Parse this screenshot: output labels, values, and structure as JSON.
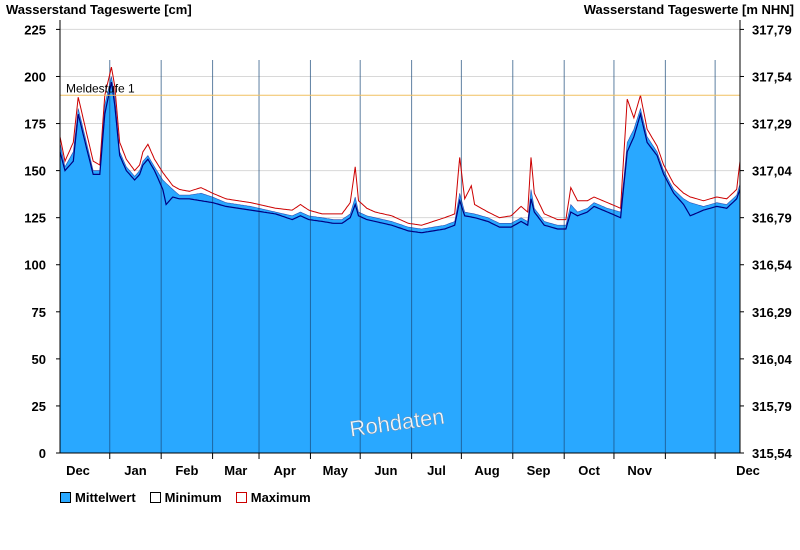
{
  "chart_data": {
    "type": "area",
    "title_left": "Wasserstand Tageswerte [cm]",
    "title_right": "Wasserstand Tageswerte [m NHN]",
    "ylim": [
      0,
      230
    ],
    "yticks": [
      0,
      25,
      50,
      75,
      100,
      125,
      150,
      175,
      200,
      225
    ],
    "yticks_right": [
      "315,54",
      "315,79",
      "316,04",
      "316,29",
      "316,54",
      "316,79",
      "317,04",
      "317,29",
      "317,54",
      "317,79"
    ],
    "months": [
      "Dec",
      "Jan",
      "Feb",
      "Mar",
      "Apr",
      "May",
      "Jun",
      "Jul",
      "Aug",
      "Sep",
      "Oct",
      "Nov",
      "Dec"
    ],
    "threshold": {
      "label": "Meldestufe 1",
      "value": 190,
      "color": "#f0c060"
    },
    "watermark": "Rohdaten",
    "grid": true,
    "legend_position": "bottom-left",
    "colors": {
      "mittel": "#29a8ff",
      "minimum": "#000080",
      "maximum": "#cc0000",
      "month_line": "#1a4a7a"
    },
    "series": [
      {
        "name": "Mittelwert",
        "keypoints": [
          [
            0,
            165
          ],
          [
            3,
            152
          ],
          [
            8,
            160
          ],
          [
            11,
            183
          ],
          [
            16,
            165
          ],
          [
            20,
            150
          ],
          [
            24,
            150
          ],
          [
            27,
            185
          ],
          [
            31,
            200
          ],
          [
            33,
            190
          ],
          [
            36,
            160
          ],
          [
            40,
            152
          ],
          [
            45,
            147
          ],
          [
            48,
            150
          ],
          [
            50,
            155
          ],
          [
            53,
            158
          ],
          [
            57,
            152
          ],
          [
            62,
            145
          ],
          [
            68,
            140
          ],
          [
            72,
            137
          ],
          [
            78,
            137
          ],
          [
            85,
            138
          ],
          [
            92,
            136
          ],
          [
            100,
            133
          ],
          [
            115,
            131
          ],
          [
            130,
            128
          ],
          [
            140,
            126
          ],
          [
            145,
            128
          ],
          [
            150,
            126
          ],
          [
            158,
            125
          ],
          [
            165,
            124
          ],
          [
            170,
            124
          ],
          [
            175,
            127
          ],
          [
            178,
            136
          ],
          [
            180,
            128
          ],
          [
            185,
            126
          ],
          [
            190,
            125
          ],
          [
            200,
            123
          ],
          [
            210,
            120
          ],
          [
            218,
            119
          ],
          [
            225,
            120
          ],
          [
            232,
            121
          ],
          [
            238,
            123
          ],
          [
            241,
            138
          ],
          [
            244,
            128
          ],
          [
            250,
            127
          ],
          [
            258,
            125
          ],
          [
            265,
            122
          ],
          [
            272,
            122
          ],
          [
            278,
            125
          ],
          [
            282,
            123
          ],
          [
            284,
            140
          ],
          [
            286,
            130
          ],
          [
            292,
            123
          ],
          [
            300,
            121
          ],
          [
            305,
            121
          ],
          [
            308,
            132
          ],
          [
            312,
            128
          ],
          [
            318,
            130
          ],
          [
            322,
            133
          ],
          [
            330,
            130
          ],
          [
            338,
            128
          ],
          [
            342,
            165
          ],
          [
            346,
            172
          ],
          [
            350,
            183
          ],
          [
            354,
            168
          ],
          [
            360,
            160
          ],
          [
            364,
            150
          ],
          [
            370,
            140
          ],
          [
            376,
            135
          ],
          [
            380,
            133
          ],
          [
            388,
            131
          ],
          [
            396,
            133
          ],
          [
            402,
            132
          ],
          [
            408,
            137
          ],
          [
            410,
            143
          ]
        ]
      },
      {
        "name": "Minimum",
        "keypoints": [
          [
            0,
            160
          ],
          [
            3,
            150
          ],
          [
            8,
            155
          ],
          [
            11,
            180
          ],
          [
            16,
            162
          ],
          [
            20,
            148
          ],
          [
            24,
            148
          ],
          [
            27,
            180
          ],
          [
            31,
            197
          ],
          [
            33,
            185
          ],
          [
            36,
            158
          ],
          [
            40,
            150
          ],
          [
            45,
            145
          ],
          [
            48,
            148
          ],
          [
            50,
            153
          ],
          [
            53,
            156
          ],
          [
            57,
            150
          ],
          [
            62,
            140
          ],
          [
            64,
            132
          ],
          [
            68,
            136
          ],
          [
            72,
            135
          ],
          [
            78,
            135
          ],
          [
            85,
            134
          ],
          [
            92,
            133
          ],
          [
            100,
            131
          ],
          [
            115,
            129
          ],
          [
            130,
            127
          ],
          [
            140,
            124
          ],
          [
            145,
            126
          ],
          [
            150,
            124
          ],
          [
            158,
            123
          ],
          [
            165,
            122
          ],
          [
            170,
            122
          ],
          [
            175,
            125
          ],
          [
            178,
            132
          ],
          [
            180,
            126
          ],
          [
            185,
            124
          ],
          [
            190,
            123
          ],
          [
            200,
            121
          ],
          [
            210,
            118
          ],
          [
            218,
            117
          ],
          [
            225,
            118
          ],
          [
            232,
            119
          ],
          [
            238,
            121
          ],
          [
            241,
            134
          ],
          [
            244,
            126
          ],
          [
            250,
            125
          ],
          [
            258,
            123
          ],
          [
            265,
            120
          ],
          [
            272,
            120
          ],
          [
            278,
            123
          ],
          [
            282,
            121
          ],
          [
            284,
            135
          ],
          [
            286,
            128
          ],
          [
            292,
            121
          ],
          [
            300,
            119
          ],
          [
            305,
            119
          ],
          [
            308,
            128
          ],
          [
            312,
            126
          ],
          [
            318,
            128
          ],
          [
            322,
            131
          ],
          [
            330,
            128
          ],
          [
            338,
            125
          ],
          [
            342,
            160
          ],
          [
            346,
            168
          ],
          [
            350,
            180
          ],
          [
            354,
            165
          ],
          [
            360,
            158
          ],
          [
            364,
            148
          ],
          [
            370,
            138
          ],
          [
            376,
            132
          ],
          [
            380,
            126
          ],
          [
            388,
            129
          ],
          [
            396,
            131
          ],
          [
            402,
            130
          ],
          [
            408,
            135
          ],
          [
            410,
            140
          ]
        ]
      },
      {
        "name": "Maximum",
        "keypoints": [
          [
            0,
            168
          ],
          [
            3,
            155
          ],
          [
            8,
            165
          ],
          [
            11,
            189
          ],
          [
            16,
            170
          ],
          [
            20,
            155
          ],
          [
            24,
            153
          ],
          [
            27,
            190
          ],
          [
            31,
            205
          ],
          [
            33,
            195
          ],
          [
            36,
            165
          ],
          [
            40,
            156
          ],
          [
            45,
            150
          ],
          [
            48,
            153
          ],
          [
            50,
            160
          ],
          [
            53,
            164
          ],
          [
            57,
            156
          ],
          [
            62,
            149
          ],
          [
            68,
            142
          ],
          [
            72,
            140
          ],
          [
            78,
            139
          ],
          [
            85,
            141
          ],
          [
            92,
            138
          ],
          [
            100,
            135
          ],
          [
            115,
            133
          ],
          [
            130,
            130
          ],
          [
            140,
            129
          ],
          [
            145,
            132
          ],
          [
            150,
            129
          ],
          [
            158,
            127
          ],
          [
            165,
            127
          ],
          [
            170,
            127
          ],
          [
            175,
            133
          ],
          [
            178,
            152
          ],
          [
            180,
            134
          ],
          [
            185,
            130
          ],
          [
            190,
            128
          ],
          [
            200,
            126
          ],
          [
            210,
            122
          ],
          [
            218,
            121
          ],
          [
            225,
            123
          ],
          [
            232,
            125
          ],
          [
            238,
            127
          ],
          [
            241,
            157
          ],
          [
            244,
            135
          ],
          [
            248,
            142
          ],
          [
            250,
            132
          ],
          [
            258,
            128
          ],
          [
            265,
            125
          ],
          [
            272,
            126
          ],
          [
            278,
            131
          ],
          [
            282,
            128
          ],
          [
            284,
            157
          ],
          [
            286,
            138
          ],
          [
            292,
            127
          ],
          [
            300,
            124
          ],
          [
            305,
            124
          ],
          [
            308,
            141
          ],
          [
            312,
            134
          ],
          [
            318,
            134
          ],
          [
            322,
            136
          ],
          [
            330,
            133
          ],
          [
            338,
            130
          ],
          [
            342,
            188
          ],
          [
            346,
            178
          ],
          [
            350,
            190
          ],
          [
            354,
            172
          ],
          [
            360,
            163
          ],
          [
            364,
            153
          ],
          [
            370,
            143
          ],
          [
            376,
            138
          ],
          [
            380,
            136
          ],
          [
            388,
            134
          ],
          [
            396,
            136
          ],
          [
            402,
            135
          ],
          [
            408,
            140
          ],
          [
            410,
            155
          ]
        ]
      }
    ]
  }
}
